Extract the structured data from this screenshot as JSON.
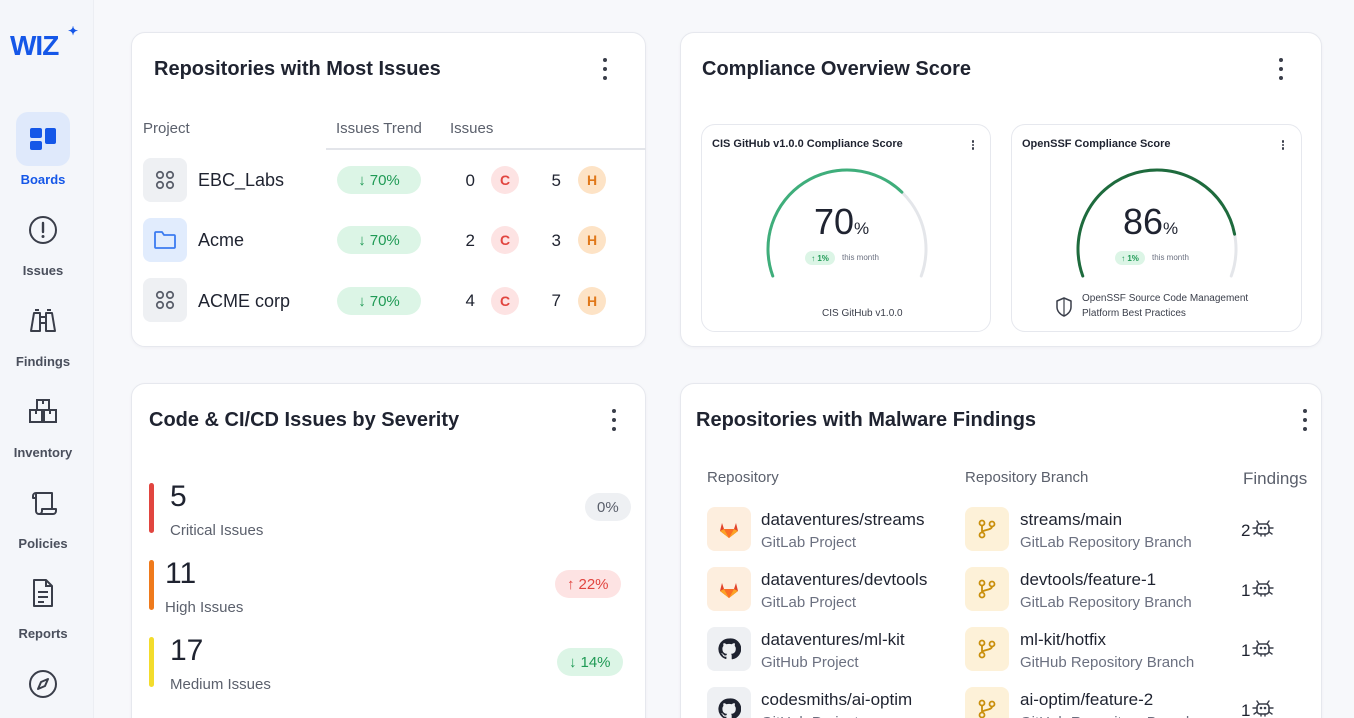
{
  "sidebar": {
    "logo": "WIZ",
    "items": [
      {
        "label": "Boards",
        "icon": "boards-icon",
        "active": true
      },
      {
        "label": "Issues",
        "icon": "alert-circle-icon"
      },
      {
        "label": "Findings",
        "icon": "binoculars-icon"
      },
      {
        "label": "Inventory",
        "icon": "inventory-icon"
      },
      {
        "label": "Policies",
        "icon": "scroll-icon"
      },
      {
        "label": "Reports",
        "icon": "report-icon"
      },
      {
        "label": "",
        "icon": "compass-icon"
      }
    ]
  },
  "repos_issues": {
    "title": "Repositories with Most Issues",
    "headers": {
      "project": "Project",
      "trend": "Issues Trend",
      "issues": "Issues"
    },
    "rows": [
      {
        "name": "EBC_Labs",
        "icon": "grid-icon",
        "trend": "70%",
        "critical": "0",
        "high": "5"
      },
      {
        "name": "Acme",
        "icon": "folder-icon",
        "trend": "70%",
        "critical": "2",
        "high": "3"
      },
      {
        "name": "ACME corp",
        "icon": "grid-icon",
        "trend": "70%",
        "critical": "4",
        "high": "7"
      }
    ],
    "critical_letter": "C",
    "high_letter": "H"
  },
  "compliance": {
    "title": "Compliance Overview Score",
    "cards": [
      {
        "title": "CIS GitHub v1.0.0 Compliance Score",
        "value": "70",
        "unit": "%",
        "delta": "1%",
        "delta_text": "this month",
        "footer": "CIS GitHub v1.0.0",
        "footer2": "",
        "score": 0.7,
        "color": "#3fae7b"
      },
      {
        "title": "OpenSSF Compliance Score",
        "value": "86",
        "unit": "%",
        "delta": "1%",
        "delta_text": "this month",
        "footer": "OpenSSF Source Code Management",
        "footer2": "Platform Best Practices",
        "score": 0.86,
        "color": "#1e6b3d"
      }
    ]
  },
  "severity": {
    "title": "Code & CI/CD Issues by Severity",
    "items": [
      {
        "count": "5",
        "label": "Critical Issues",
        "change": "0%",
        "direction": "neutral",
        "color": "#e1453f"
      },
      {
        "count": "11",
        "label": "High Issues",
        "change": "22%",
        "direction": "up",
        "color": "#ef7a1c"
      },
      {
        "count": "17",
        "label": "Medium Issues",
        "change": "14%",
        "direction": "down",
        "color": "#f3dc2c"
      }
    ]
  },
  "malware": {
    "title": "Repositories with Malware Findings",
    "headers": {
      "repo": "Repository",
      "branch": "Repository Branch",
      "findings": "Findings"
    },
    "rows": [
      {
        "repo": "dataventures/streams",
        "repo_type": "GitLab Project",
        "repo_icon": "gitlab",
        "branch": "streams/main",
        "branch_type": "GitLab Repository Branch",
        "findings": "2"
      },
      {
        "repo": "dataventures/devtools",
        "repo_type": "GitLab Project",
        "repo_icon": "gitlab",
        "branch": "devtools/feature-1",
        "branch_type": "GitLab Repository Branch",
        "findings": "1"
      },
      {
        "repo": "dataventures/ml-kit",
        "repo_type": "GitHub Project",
        "repo_icon": "github",
        "branch": "ml-kit/hotfix",
        "branch_type": "GitHub Repository Branch",
        "findings": "1"
      },
      {
        "repo": "codesmiths/ai-optim",
        "repo_type": "GitHub Project",
        "repo_icon": "github",
        "branch": "ai-optim/feature-2",
        "branch_type": "GitHub Repository Branch",
        "findings": "1"
      }
    ]
  }
}
